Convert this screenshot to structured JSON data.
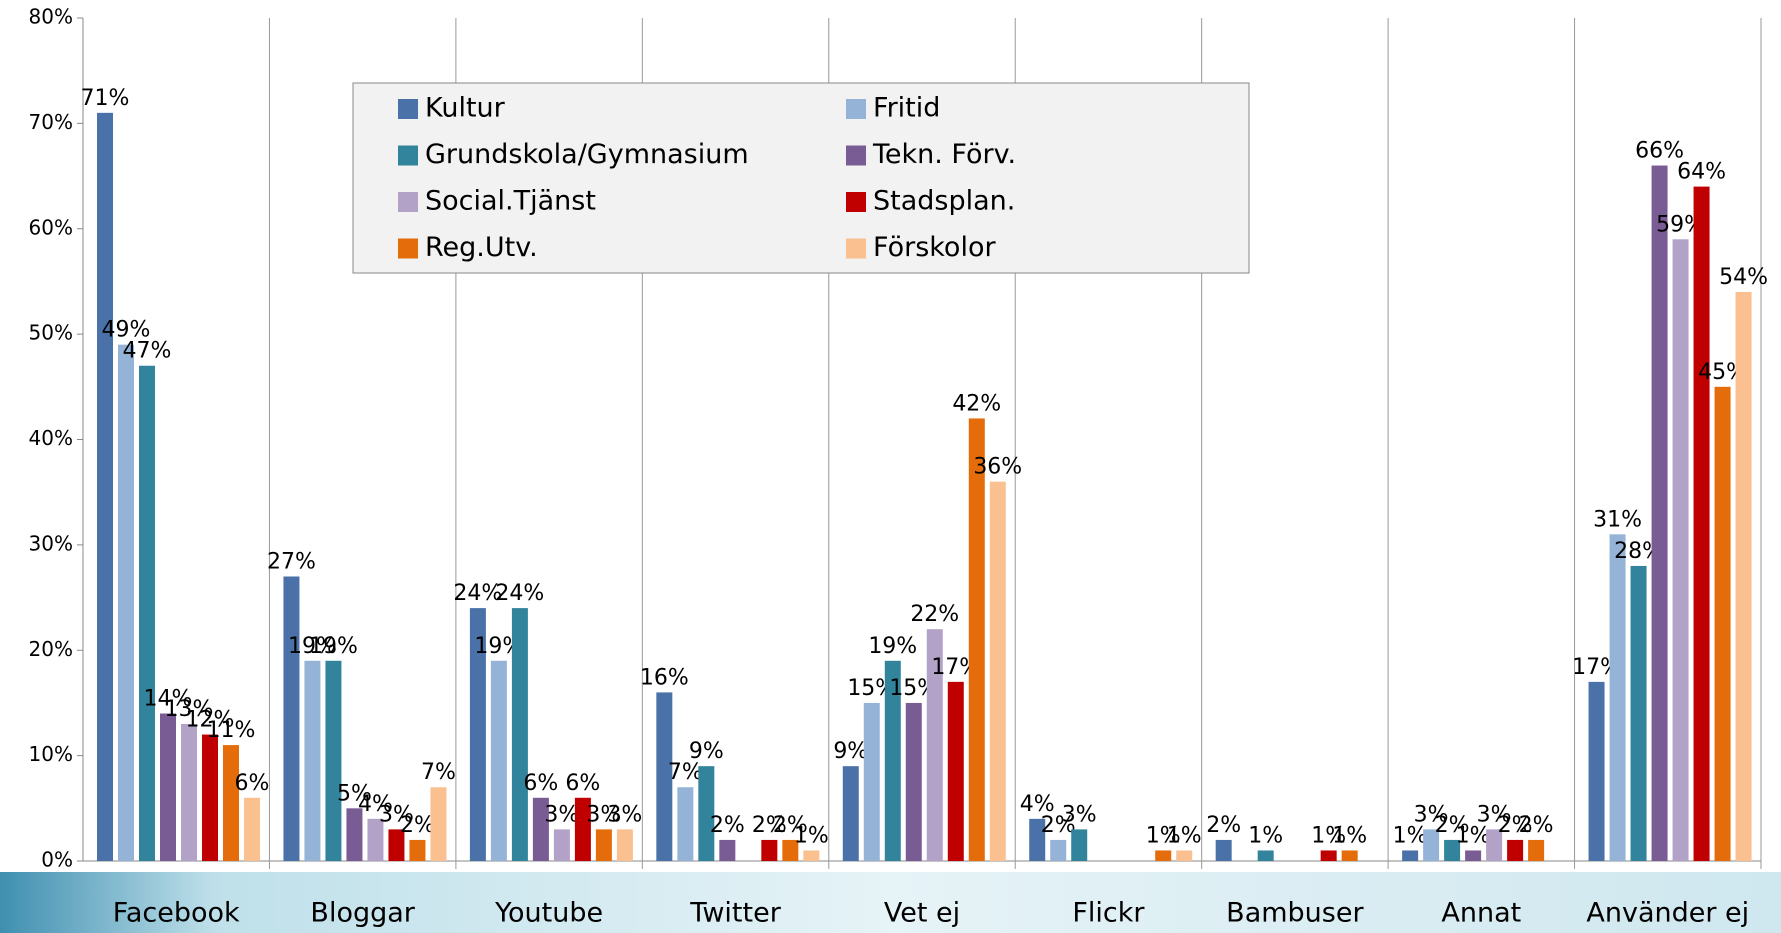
{
  "chart_data": {
    "type": "bar",
    "categories": [
      "Facebook",
      "Bloggar",
      "Youtube",
      "Twitter",
      "Vet ej",
      "Flickr",
      "Bambuser",
      "Annat",
      "Använder ej"
    ],
    "series": [
      {
        "name": "Kultur",
        "color": "#4a72a8",
        "values": [
          71,
          27,
          24,
          16,
          9,
          4,
          2,
          1,
          17
        ],
        "value_labels": [
          "71%",
          "27%",
          "24%",
          "16%",
          "9%",
          "4%",
          "2%",
          "1%",
          "17%"
        ]
      },
      {
        "name": "Fritid",
        "color": "#95b3d7",
        "values": [
          49,
          19,
          19,
          7,
          15,
          2,
          null,
          3,
          31
        ],
        "value_labels": [
          "49%",
          "19%",
          "19%",
          "7%",
          "15%",
          "2%",
          null,
          "3%",
          "31%"
        ]
      },
      {
        "name": "Grundskola/Gymnasium",
        "color": "#31849b",
        "values": [
          47,
          19,
          24,
          9,
          19,
          3,
          1,
          2,
          28
        ],
        "value_labels": [
          "47%",
          "19%",
          "24%",
          "9%",
          "19%",
          "3%",
          "1%",
          "2%",
          "28%"
        ]
      },
      {
        "name": "Tekn. Förv.",
        "color": "#7a5c94",
        "values": [
          14,
          5,
          6,
          2,
          15,
          null,
          null,
          1,
          66
        ],
        "value_labels": [
          "14%",
          "5%",
          "6%",
          "2%",
          "15%",
          null,
          null,
          "1%",
          "66%"
        ]
      },
      {
        "name": "Social.Tjänst",
        "color": "#b3a2c7",
        "values": [
          13,
          4,
          3,
          null,
          22,
          null,
          null,
          3,
          59
        ],
        "value_labels": [
          "13%",
          "4%",
          "3%",
          null,
          "22%",
          null,
          null,
          "3%",
          "59%"
        ]
      },
      {
        "name": "Stadsplan.",
        "color": "#c00000",
        "values": [
          12,
          3,
          6,
          2,
          17,
          null,
          1,
          2,
          64
        ],
        "value_labels": [
          "12%",
          "3%",
          "6%",
          "2%",
          "17%",
          null,
          "1%",
          "2%",
          "64%"
        ]
      },
      {
        "name": "Reg.Utv.",
        "color": "#e46c0a",
        "values": [
          11,
          2,
          3,
          2,
          42,
          1,
          1,
          2,
          45
        ],
        "value_labels": [
          "11%",
          "2%",
          "3%",
          "2%",
          "42%",
          "1%",
          "1%",
          "2%",
          "45%"
        ]
      },
      {
        "name": "Förskolor",
        "color": "#fac090",
        "values": [
          6,
          7,
          3,
          1,
          36,
          1,
          null,
          null,
          54
        ],
        "value_labels": [
          "6%",
          "7%",
          "3%",
          "1%",
          "36%",
          "1%",
          null,
          null,
          "54%"
        ]
      }
    ],
    "ylim": [
      0,
      80
    ],
    "yticks": [
      {
        "value": 0,
        "label": "0%"
      },
      {
        "value": 10,
        "label": "10%"
      },
      {
        "value": 20,
        "label": "20%"
      },
      {
        "value": 30,
        "label": "30%"
      },
      {
        "value": 40,
        "label": "40%"
      },
      {
        "value": 50,
        "label": "50%"
      },
      {
        "value": 60,
        "label": "60%"
      },
      {
        "value": 70,
        "label": "70%"
      },
      {
        "value": 80,
        "label": "80%"
      }
    ]
  }
}
